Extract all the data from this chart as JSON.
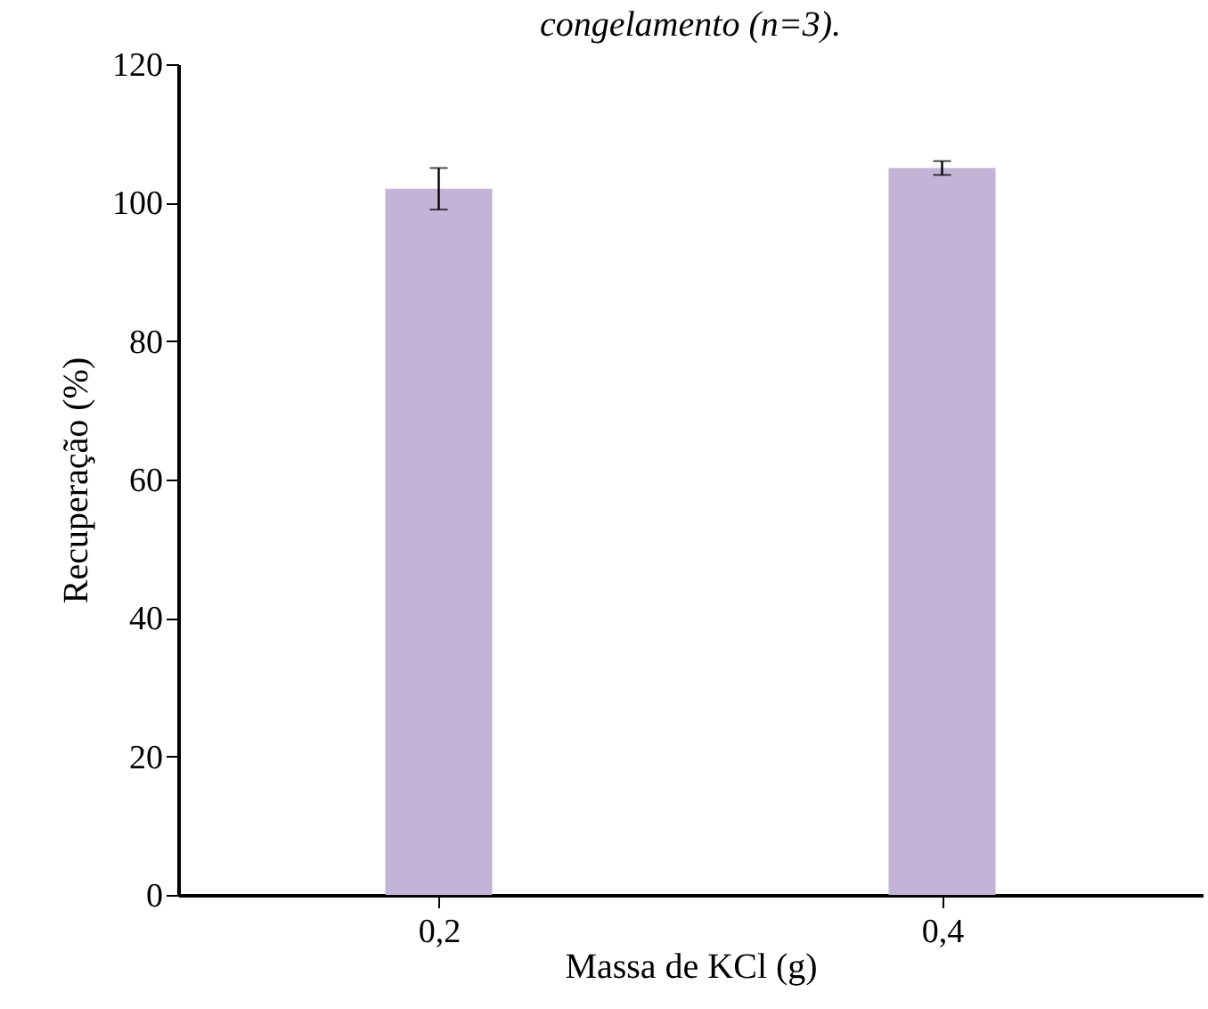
{
  "chart_data": {
    "type": "bar",
    "title": "congelamento (n=3).",
    "xlabel": "Massa de KCl (g)",
    "ylabel": "Recuperação (%)",
    "categories": [
      "0,2",
      "0,4"
    ],
    "color": "#c3b3d7",
    "values": [
      102,
      105
    ],
    "errors": [
      3,
      1
    ],
    "ylim": [
      0,
      120
    ],
    "yticks": [
      0,
      20,
      40,
      60,
      80,
      100,
      120
    ],
    "grid": false
  }
}
